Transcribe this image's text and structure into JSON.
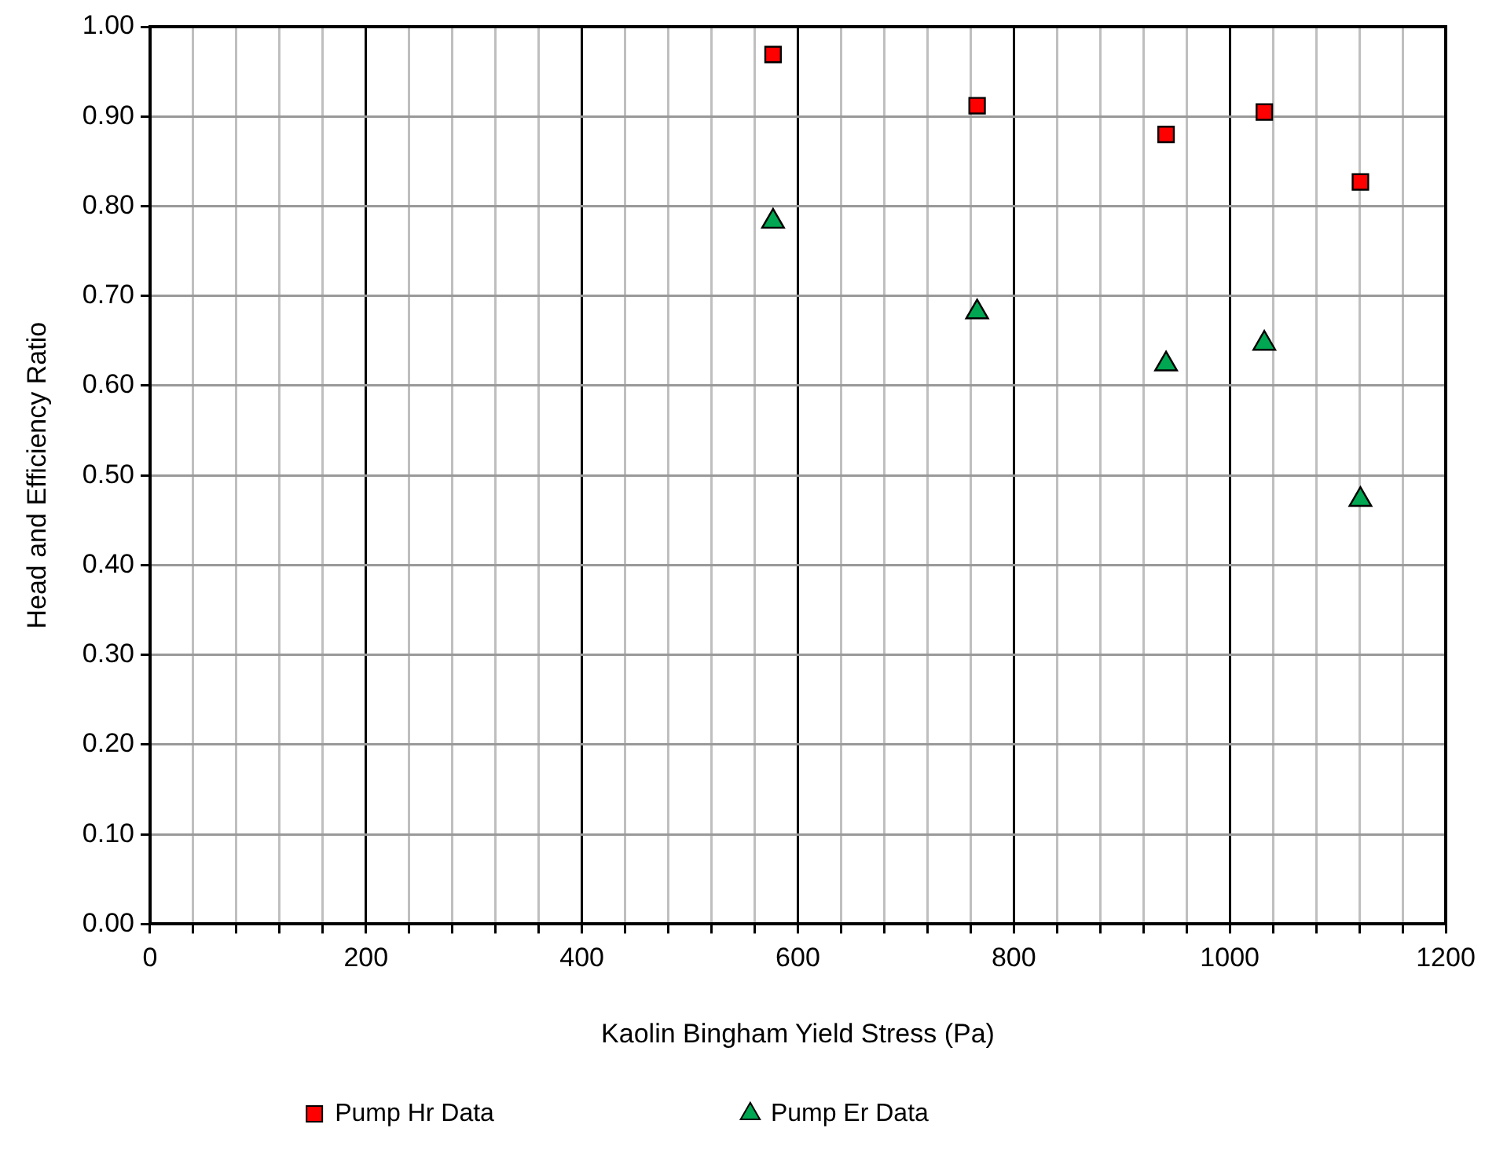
{
  "chart_data": {
    "type": "scatter",
    "xlabel": "Kaolin Bingham Yield Stress (Pa)",
    "ylabel": "Head and Efficiency Ratio",
    "xlim": [
      0,
      1200
    ],
    "ylim": [
      0,
      1
    ],
    "xticks": [
      0,
      {
        "value": 40,
        "label": null
      },
      {
        "value": 80,
        "label": null
      },
      {
        "value": 120,
        "label": null
      },
      {
        "value": 160,
        "label": null
      },
      200,
      {
        "value": 240,
        "label": null
      },
      {
        "value": 280,
        "label": null
      },
      {
        "value": 320,
        "label": null
      },
      {
        "value": 360,
        "label": null
      },
      400,
      {
        "value": 440,
        "label": null
      },
      {
        "value": 480,
        "label": null
      },
      {
        "value": 520,
        "label": null
      },
      {
        "value": 560,
        "label": null
      },
      600,
      {
        "value": 640,
        "label": null
      },
      {
        "value": 680,
        "label": null
      },
      {
        "value": 720,
        "label": null
      },
      {
        "value": 760,
        "label": null
      },
      800,
      {
        "value": 840,
        "label": null
      },
      {
        "value": 880,
        "label": null
      },
      {
        "value": 920,
        "label": null
      },
      {
        "value": 960,
        "label": null
      },
      1000,
      {
        "value": 1040,
        "label": null
      },
      {
        "value": 1080,
        "label": null
      },
      {
        "value": 1120,
        "label": null
      },
      {
        "value": 1160,
        "label": null
      },
      1200
    ],
    "yticks": [
      {
        "value": 0,
        "label": "0.00"
      },
      {
        "value": 0.1,
        "label": "0.10"
      },
      {
        "value": 0.2,
        "label": "0.20"
      },
      {
        "value": 0.3,
        "label": "0.30"
      },
      {
        "value": 0.4,
        "label": "0.40"
      },
      {
        "value": 0.5,
        "label": "0.50"
      },
      {
        "value": 0.6,
        "label": "0.60"
      },
      {
        "value": 0.7,
        "label": "0.70"
      },
      {
        "value": 0.8,
        "label": "0.80"
      },
      {
        "value": 0.9,
        "label": "0.90"
      },
      {
        "value": 1,
        "label": "1.00"
      }
    ],
    "grid": true,
    "legend": "bottom",
    "series": [
      {
        "name": "Pump Hr Data",
        "color": "#ff0000",
        "marker": "square",
        "x": [
          577,
          766,
          941,
          1032,
          1121
        ],
        "values": [
          0.969,
          0.912,
          0.88,
          0.905,
          0.827
        ]
      },
      {
        "name": "Pump Er Data",
        "color": "#00a651",
        "marker": "triangle",
        "x": [
          577,
          766,
          941,
          1032,
          1121
        ],
        "values": [
          0.783,
          0.682,
          0.624,
          0.647,
          0.473
        ]
      }
    ]
  }
}
